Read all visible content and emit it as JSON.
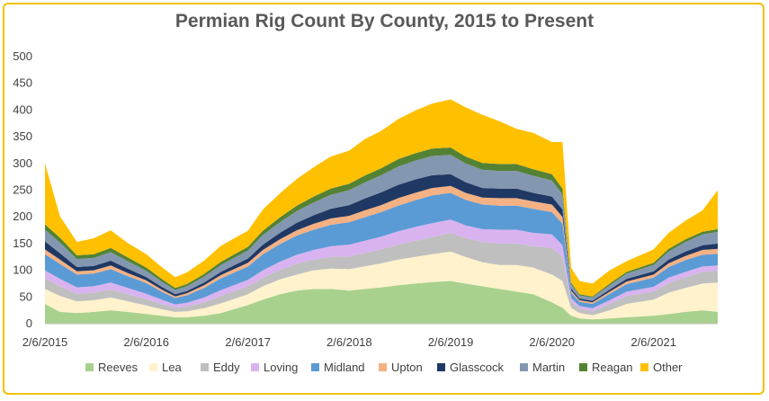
{
  "chart_data": {
    "type": "area",
    "stacked": true,
    "title": "Permian Rig Count By County, 2015 to Present",
    "xlabel": "",
    "ylabel": "",
    "ylim": [
      0,
      500
    ],
    "yticks": [
      0,
      50,
      100,
      150,
      200,
      250,
      300,
      350,
      400,
      450,
      500
    ],
    "xticks": [
      "2/6/2015",
      "2/6/2016",
      "2/6/2017",
      "2/6/2018",
      "2/6/2019",
      "2/6/2020",
      "2/6/2021"
    ],
    "grid": false,
    "legend_position": "bottom",
    "x": [
      "2015-02-06",
      "2015-04-01",
      "2015-06-01",
      "2015-08-01",
      "2015-10-01",
      "2015-12-01",
      "2016-02-06",
      "2016-04-01",
      "2016-05-20",
      "2016-07-01",
      "2016-09-01",
      "2016-11-01",
      "2017-02-06",
      "2017-04-01",
      "2017-06-01",
      "2017-08-01",
      "2017-10-01",
      "2017-12-01",
      "2018-02-06",
      "2018-04-01",
      "2018-06-01",
      "2018-08-01",
      "2018-10-01",
      "2018-12-01",
      "2019-02-06",
      "2019-04-01",
      "2019-06-01",
      "2019-08-01",
      "2019-10-01",
      "2019-12-01",
      "2020-02-06",
      "2020-03-15",
      "2020-04-15",
      "2020-05-15",
      "2020-07-01",
      "2020-09-01",
      "2020-11-01",
      "2021-02-06",
      "2021-04-01",
      "2021-06-01",
      "2021-08-01",
      "2021-09-25"
    ],
    "series": [
      {
        "name": "Reeves",
        "color": "#a9d18e",
        "values": [
          37,
          22,
          20,
          22,
          25,
          22,
          18,
          15,
          12,
          12,
          15,
          20,
          35,
          45,
          55,
          62,
          65,
          65,
          62,
          65,
          68,
          72,
          75,
          78,
          80,
          75,
          70,
          65,
          60,
          55,
          40,
          30,
          15,
          10,
          8,
          10,
          12,
          15,
          18,
          22,
          25,
          22
        ]
      },
      {
        "name": "Lea",
        "color": "#fff2cc",
        "values": [
          28,
          30,
          22,
          22,
          24,
          20,
          16,
          12,
          10,
          11,
          14,
          18,
          20,
          25,
          28,
          30,
          35,
          38,
          40,
          42,
          45,
          48,
          50,
          52,
          55,
          50,
          45,
          45,
          50,
          50,
          52,
          50,
          15,
          10,
          8,
          15,
          25,
          30,
          40,
          45,
          50,
          55
        ]
      },
      {
        "name": "Eddy",
        "color": "#bfbfbf",
        "values": [
          20,
          18,
          14,
          14,
          15,
          13,
          12,
          10,
          8,
          9,
          11,
          14,
          15,
          16,
          18,
          20,
          20,
          22,
          24,
          25,
          26,
          28,
          30,
          32,
          35,
          35,
          38,
          40,
          40,
          40,
          50,
          45,
          12,
          8,
          8,
          12,
          15,
          15,
          18,
          20,
          22,
          22
        ]
      },
      {
        "name": "Loving",
        "color": "#d9b3f0",
        "values": [
          15,
          14,
          12,
          12,
          13,
          12,
          10,
          8,
          6,
          7,
          9,
          11,
          12,
          14,
          15,
          17,
          18,
          20,
          22,
          23,
          24,
          25,
          26,
          26,
          25,
          24,
          24,
          26,
          26,
          25,
          25,
          22,
          6,
          5,
          5,
          7,
          8,
          9,
          10,
          10,
          10,
          10
        ]
      },
      {
        "name": "Midland",
        "color": "#5b9bd5",
        "values": [
          30,
          28,
          24,
          24,
          25,
          22,
          20,
          15,
          12,
          14,
          18,
          22,
          25,
          30,
          33,
          36,
          38,
          40,
          42,
          44,
          46,
          48,
          50,
          52,
          50,
          48,
          46,
          45,
          45,
          45,
          42,
          40,
          10,
          8,
          8,
          12,
          14,
          17,
          20,
          22,
          22,
          22
        ]
      },
      {
        "name": "Upton",
        "color": "#f4b183",
        "values": [
          9,
          8,
          6,
          6,
          7,
          6,
          5,
          4,
          3,
          4,
          5,
          6,
          7,
          8,
          9,
          10,
          11,
          12,
          12,
          13,
          13,
          14,
          14,
          14,
          13,
          13,
          13,
          14,
          14,
          14,
          14,
          13,
          4,
          3,
          3,
          4,
          5,
          6,
          7,
          8,
          9,
          9
        ]
      },
      {
        "name": "Glasscock",
        "color": "#203864",
        "values": [
          15,
          12,
          8,
          8,
          9,
          8,
          6,
          5,
          4,
          4,
          5,
          6,
          8,
          10,
          12,
          14,
          16,
          18,
          20,
          22,
          24,
          25,
          25,
          24,
          22,
          20,
          18,
          18,
          18,
          16,
          15,
          14,
          4,
          3,
          3,
          4,
          5,
          6,
          7,
          8,
          9,
          10
        ]
      },
      {
        "name": "Martin",
        "color": "#8497b0",
        "values": [
          22,
          20,
          15,
          15,
          16,
          14,
          12,
          10,
          8,
          9,
          11,
          13,
          15,
          18,
          20,
          22,
          24,
          26,
          28,
          30,
          32,
          34,
          35,
          36,
          36,
          35,
          34,
          33,
          33,
          32,
          30,
          28,
          8,
          6,
          6,
          8,
          10,
          12,
          15,
          18,
          20,
          22
        ]
      },
      {
        "name": "Reagan",
        "color": "#548235",
        "values": [
          10,
          9,
          7,
          7,
          8,
          7,
          6,
          5,
          4,
          4,
          5,
          6,
          7,
          8,
          9,
          10,
          11,
          12,
          12,
          13,
          13,
          14,
          14,
          14,
          14,
          13,
          13,
          13,
          13,
          12,
          12,
          11,
          3,
          2,
          2,
          3,
          3,
          4,
          5,
          5,
          5,
          5
        ]
      },
      {
        "name": "Other",
        "color": "#ffc000",
        "values": [
          114,
          40,
          25,
          30,
          33,
          27,
          25,
          22,
          20,
          22,
          25,
          30,
          30,
          40,
          45,
          50,
          55,
          60,
          62,
          68,
          70,
          75,
          80,
          84,
          90,
          92,
          90,
          80,
          66,
          68,
          60,
          87,
          28,
          25,
          24,
          25,
          20,
          25,
          30,
          35,
          40,
          73
        ]
      }
    ]
  }
}
